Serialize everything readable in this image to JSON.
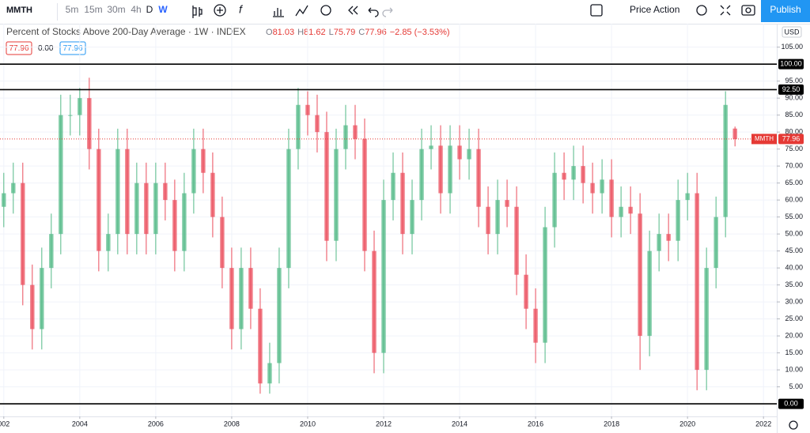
{
  "toolbar": {
    "symbol": "MMTH",
    "intervals": [
      "5m",
      "15m",
      "30m",
      "4h",
      "D",
      "W"
    ],
    "template": "Price Action",
    "publish": "Publish"
  },
  "legend": {
    "title": "Percent of Stocks Above 200-Day Average · 1W · INDEX",
    "ohlc": [
      {
        "key": "O",
        "value": "81.03"
      },
      {
        "key": "H",
        "value": "81.62"
      },
      {
        "key": "L",
        "value": "75.79"
      },
      {
        "key": "C",
        "value": "77.96"
      }
    ],
    "change": "−2.85 (−3.53%)",
    "boxes": [
      "77.96",
      "0.00",
      "77.96"
    ]
  },
  "chart_data": {
    "type": "candlestick",
    "unit": "USD",
    "x": [
      2002,
      2002.25,
      2002.5,
      2002.75,
      2003,
      2003.25,
      2003.5,
      2003.75,
      2004,
      2004.25,
      2004.5,
      2004.75,
      2005,
      2005.25,
      2005.5,
      2005.75,
      2006,
      2006.25,
      2006.5,
      2006.75,
      2007,
      2007.25,
      2007.5,
      2007.75,
      2008,
      2008.25,
      2008.5,
      2008.75,
      2009,
      2009.25,
      2009.5,
      2009.75,
      2010,
      2010.25,
      2010.5,
      2010.75,
      2011,
      2011.25,
      2011.5,
      2011.75,
      2012,
      2012.25,
      2012.5,
      2012.75,
      2013,
      2013.25,
      2013.5,
      2013.75,
      2014,
      2014.25,
      2014.5,
      2014.75,
      2015,
      2015.25,
      2015.5,
      2015.75,
      2016,
      2016.25,
      2016.5,
      2016.75,
      2017,
      2017.25,
      2017.5,
      2017.75,
      2018,
      2018.25,
      2018.5,
      2018.75,
      2019,
      2019.25,
      2019.5,
      2019.75,
      2020,
      2020.25,
      2020.5,
      2020.75,
      2021,
      2021.25
    ],
    "open": [
      58,
      62,
      65,
      35,
      22,
      40,
      50,
      85,
      85,
      90,
      75,
      45,
      50,
      75,
      50,
      65,
      50,
      65,
      60,
      45,
      62,
      75,
      68,
      55,
      40,
      22,
      40,
      28,
      6,
      12,
      40,
      75,
      88,
      85,
      80,
      48,
      75,
      82,
      78,
      45,
      15,
      60,
      68,
      50,
      60,
      75,
      76,
      62,
      76,
      72,
      75,
      58,
      50,
      60,
      58,
      38,
      28,
      18,
      52,
      68,
      66,
      70,
      65,
      62,
      66,
      55,
      58,
      56,
      20,
      45,
      50,
      48,
      60,
      62,
      10,
      40,
      55,
      81.03
    ],
    "high": [
      68,
      71,
      71,
      41,
      46,
      56,
      91,
      91,
      93,
      96,
      81,
      56,
      81,
      81,
      71,
      71,
      71,
      71,
      66,
      68,
      81,
      81,
      74,
      61,
      46,
      46,
      46,
      34,
      18,
      46,
      81,
      93,
      92,
      91,
      86,
      81,
      88,
      88,
      84,
      51,
      66,
      74,
      74,
      66,
      81,
      82,
      82,
      82,
      82,
      81,
      81,
      64,
      66,
      66,
      64,
      44,
      34,
      58,
      74,
      74,
      76,
      76,
      71,
      72,
      72,
      64,
      64,
      62,
      51,
      56,
      56,
      66,
      68,
      68,
      46,
      61,
      92,
      81.62
    ],
    "low": [
      52,
      56,
      29,
      16,
      16,
      34,
      44,
      79,
      79,
      69,
      39,
      39,
      44,
      44,
      44,
      44,
      44,
      54,
      39,
      39,
      56,
      62,
      49,
      34,
      16,
      16,
      22,
      3,
      3,
      6,
      34,
      69,
      79,
      74,
      42,
      42,
      69,
      72,
      39,
      9,
      9,
      54,
      44,
      44,
      54,
      69,
      56,
      56,
      66,
      66,
      52,
      44,
      44,
      52,
      32,
      22,
      12,
      12,
      46,
      60,
      60,
      59,
      56,
      56,
      49,
      49,
      50,
      10,
      14,
      39,
      42,
      42,
      54,
      4,
      4,
      34,
      49,
      75.79
    ],
    "close": [
      62,
      65,
      35,
      22,
      40,
      50,
      85,
      85,
      90,
      75,
      45,
      50,
      75,
      50,
      65,
      50,
      65,
      60,
      45,
      62,
      75,
      68,
      55,
      40,
      22,
      40,
      28,
      6,
      12,
      40,
      75,
      88,
      85,
      80,
      48,
      75,
      82,
      78,
      45,
      15,
      60,
      68,
      50,
      60,
      75,
      76,
      62,
      76,
      72,
      75,
      58,
      50,
      60,
      58,
      38,
      28,
      18,
      52,
      68,
      66,
      70,
      65,
      62,
      66,
      55,
      58,
      56,
      20,
      45,
      50,
      48,
      60,
      62,
      10,
      40,
      55,
      88,
      77.96
    ],
    "up_color": "#53b987",
    "down_color": "#eb4d5c",
    "xlim": [
      2001.9,
      2022.35
    ],
    "xticks": [
      {
        "value": 2002,
        "label": "002"
      },
      2004,
      2006,
      2008,
      2010,
      2012,
      2014,
      2016,
      2018,
      2020,
      2022
    ],
    "ylim": [
      -3.7,
      111.9
    ],
    "yticks": [
      {
        "value": 5,
        "label": "5.00"
      },
      {
        "value": 10,
        "label": "10.00"
      },
      {
        "value": 15,
        "label": "15.00"
      },
      {
        "value": 20,
        "label": "20.00"
      },
      {
        "value": 25,
        "label": "25.00"
      },
      {
        "value": 30,
        "label": "30.00"
      },
      {
        "value": 35,
        "label": "35.00"
      },
      {
        "value": 40,
        "label": "40.00"
      },
      {
        "value": 45,
        "label": "45.00"
      },
      {
        "value": 50,
        "label": "50.00"
      },
      {
        "value": 55,
        "label": "55.00"
      },
      {
        "value": 60,
        "label": "60.00"
      },
      {
        "value": 65,
        "label": "65.00"
      },
      {
        "value": 70,
        "label": "70.00"
      },
      {
        "value": 75,
        "label": "75.00"
      },
      {
        "value": 80,
        "label": "80.00"
      },
      {
        "value": 85,
        "label": "85.00"
      },
      {
        "value": 90,
        "label": "90.00"
      },
      {
        "value": 95,
        "label": "95.00"
      },
      {
        "value": 105,
        "label": "105.00"
      }
    ],
    "grid": true,
    "hlines": [
      {
        "value": 100,
        "label": "100.00"
      },
      {
        "value": 92.5,
        "label": "92.50"
      },
      {
        "value": 0,
        "label": "0.00"
      }
    ],
    "last": {
      "name": "MMTH",
      "value": 77.96,
      "label": "77.96",
      "color": "#e53935"
    }
  }
}
